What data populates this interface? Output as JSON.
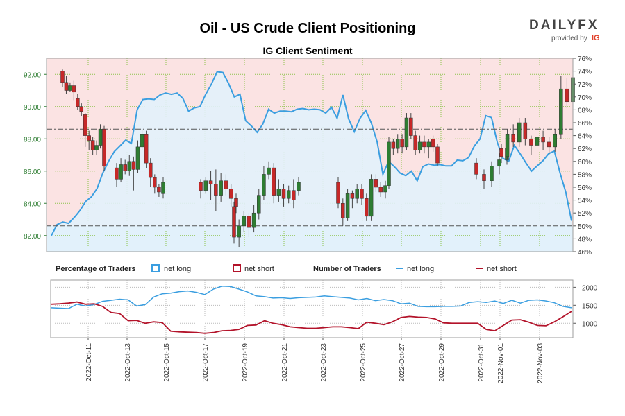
{
  "header": {
    "title": "Oil - US Crude Client Positioning",
    "subtitle": "IG Client Sentiment"
  },
  "logo": {
    "brand": "DAILYFX",
    "provided_by": "provided by",
    "ig": "IG"
  },
  "legend": {
    "percentage_label": "Percentage of Traders",
    "number_label": "Number of Traders",
    "net_long": "net long",
    "net_short": "net short"
  },
  "colors": {
    "long": "#3a9ee0",
    "short": "#b3132a",
    "candle_up": "#2e7d32",
    "candle_down": "#c62828",
    "short_bg": "#fbe3e3",
    "long_bg": "#e2f1fb",
    "grid": "#8bc34a"
  },
  "chart_data": [
    {
      "type": "candlestick",
      "title": "Oil - US Crude Client Positioning",
      "subtitle": "IG Client Sentiment",
      "price_axis": {
        "side": "left",
        "ylim": [
          81,
          93
        ],
        "ticks": [
          "82.00",
          "84.00",
          "86.00",
          "88.00",
          "90.00",
          "92.00"
        ]
      },
      "sentiment_axis": {
        "side": "right",
        "ylim": [
          46,
          76
        ],
        "ticks": [
          "46%",
          "48%",
          "50%",
          "52%",
          "54%",
          "56%",
          "58%",
          "60%",
          "62%",
          "64%",
          "66%",
          "68%",
          "70%",
          "72%",
          "74%",
          "76%"
        ]
      },
      "x_ticks": [
        "2022-Oct-11",
        "2022-Oct-13",
        "2022-Oct-15",
        "2022-Oct-17",
        "2022-Oct-19",
        "2022-Oct-21",
        "2022-Oct-23",
        "2022-Oct-25",
        "2022-Oct-27",
        "2022-Oct-29",
        "2022-Oct-31",
        "2022-Nov-01",
        "2022-Nov-03"
      ],
      "reference_lines": [
        50,
        65
      ],
      "grid": true,
      "candles": [
        [
          92.2,
          91.5,
          92.3,
          91.2
        ],
        [
          91.5,
          91.0,
          91.9,
          90.8
        ],
        [
          91.0,
          91.3,
          91.5,
          90.9
        ],
        [
          91.3,
          90.9,
          91.6,
          90.4
        ],
        [
          90.5,
          90.0,
          90.8,
          89.8
        ],
        [
          90.0,
          89.7,
          90.2,
          89.4
        ],
        [
          89.5,
          88.2,
          89.6,
          87.5
        ],
        [
          88.2,
          87.9,
          88.5,
          87.3
        ],
        [
          87.9,
          87.3,
          88.1,
          87.0
        ],
        [
          87.3,
          87.6,
          87.9,
          87.0
        ],
        [
          87.6,
          88.6,
          88.9,
          87.4
        ],
        [
          88.6,
          86.3,
          88.8,
          86.0
        ],
        [
          86.2,
          85.5,
          86.5,
          85.0
        ],
        [
          85.5,
          86.4,
          86.8,
          85.3
        ],
        [
          86.4,
          86.0,
          86.7,
          85.8
        ],
        [
          86.0,
          86.6,
          87.0,
          85.7
        ],
        [
          86.6,
          86.1,
          86.9,
          84.8
        ],
        [
          86.1,
          87.5,
          87.9,
          85.9
        ],
        [
          87.5,
          88.3,
          88.6,
          87.3
        ],
        [
          88.3,
          86.5,
          88.5,
          86.2
        ],
        [
          86.5,
          85.6,
          86.8,
          85.0
        ],
        [
          85.6,
          85.0,
          85.8,
          84.6
        ],
        [
          85.0,
          84.7,
          85.2,
          84.4
        ],
        [
          84.6,
          85.3,
          85.6,
          84.3
        ],
        [
          85.3,
          84.8,
          85.5,
          84.3
        ],
        [
          84.8,
          85.4,
          85.6,
          84.6
        ],
        [
          85.4,
          85.2,
          86.0,
          84.2
        ],
        [
          85.2,
          84.5,
          86.1,
          83.5
        ],
        [
          84.5,
          85.4,
          85.9,
          84.1
        ],
        [
          85.4,
          84.9,
          85.8,
          84.5
        ],
        [
          84.9,
          84.3,
          85.2,
          83.8
        ],
        [
          84.3,
          83.8,
          84.6,
          83.4
        ],
        [
          83.8,
          81.9,
          84.1,
          81.5
        ],
        [
          81.9,
          82.6,
          83.0,
          81.3
        ],
        [
          82.6,
          83.2,
          83.5,
          82.2
        ],
        [
          83.2,
          82.5,
          83.4,
          81.9
        ],
        [
          82.5,
          83.4,
          83.9,
          82.2
        ],
        [
          83.4,
          84.5,
          84.9,
          83.0
        ],
        [
          84.5,
          85.8,
          86.3,
          84.2
        ],
        [
          85.8,
          86.2,
          86.6,
          85.5
        ],
        [
          86.2,
          84.5,
          86.5,
          84.0
        ],
        [
          84.5,
          84.9,
          85.5,
          84.1
        ],
        [
          84.9,
          84.3,
          85.2,
          83.8
        ],
        [
          84.3,
          84.8,
          85.1,
          84.0
        ],
        [
          84.8,
          84.2,
          85.5,
          83.7
        ],
        [
          84.8,
          85.3,
          85.6,
          84.5
        ],
        [
          85.3,
          84.0,
          85.6,
          83.7
        ],
        [
          84.0,
          83.1,
          84.3,
          82.6
        ],
        [
          83.1,
          84.6,
          84.9,
          82.9
        ],
        [
          84.6,
          84.3,
          84.8,
          83.7
        ],
        [
          84.3,
          84.9,
          85.2,
          84.0
        ],
        [
          84.9,
          84.3,
          85.2,
          83.9
        ],
        [
          84.3,
          83.2,
          84.6,
          82.9
        ],
        [
          83.2,
          85.5,
          85.8,
          82.9
        ],
        [
          85.5,
          85.0,
          85.8,
          84.7
        ],
        [
          85.0,
          84.7,
          85.3,
          84.4
        ],
        [
          84.7,
          85.1,
          85.4,
          84.3
        ],
        [
          85.1,
          87.8,
          88.1,
          84.9
        ],
        [
          87.8,
          87.4,
          88.0,
          87.0
        ],
        [
          87.4,
          88.0,
          88.3,
          87.1
        ],
        [
          88.0,
          87.5,
          88.3,
          87.1
        ],
        [
          87.5,
          89.3,
          89.6,
          87.3
        ],
        [
          89.3,
          88.2,
          89.6,
          88.0
        ],
        [
          88.2,
          87.3,
          88.5,
          87.0
        ],
        [
          87.3,
          87.8,
          88.2,
          87.1
        ],
        [
          87.8,
          87.5,
          88.2,
          87.1
        ],
        [
          87.5,
          87.8,
          88.0,
          86.8
        ],
        [
          88.0,
          87.5,
          88.2,
          87.2
        ],
        [
          87.5,
          86.5,
          87.7,
          86.3
        ],
        [
          86.5,
          85.8,
          86.8,
          85.5
        ],
        [
          85.8,
          85.4,
          86.1,
          84.9
        ],
        [
          85.4,
          86.3,
          86.6,
          85.0
        ],
        [
          86.3,
          86.7,
          87.1,
          85.8
        ],
        [
          86.7,
          87.4,
          87.8,
          86.4
        ],
        [
          87.4,
          86.9,
          87.7,
          86.5
        ],
        [
          86.9,
          88.3,
          88.6,
          86.7
        ],
        [
          88.3,
          87.8,
          88.9,
          87.5
        ],
        [
          87.8,
          89.0,
          89.3,
          87.5
        ],
        [
          89.0,
          88.0,
          89.3,
          87.6
        ],
        [
          88.0,
          87.6,
          88.2,
          87.0
        ],
        [
          87.6,
          88.1,
          88.4,
          87.3
        ],
        [
          88.1,
          87.8,
          88.5,
          87.3
        ],
        [
          87.8,
          87.5,
          88.1,
          87.0
        ],
        [
          87.5,
          88.3,
          88.6,
          87.2
        ],
        [
          88.3,
          91.1,
          91.9,
          88.0
        ],
        [
          91.1,
          90.3,
          91.8,
          89.9
        ],
        [
          90.3,
          91.8,
          92.2,
          90.0
        ]
      ],
      "sentiment_net_long_pct": [
        48.5,
        50.2,
        50.6,
        50.4,
        51.3,
        52.4,
        53.8,
        54.5,
        55.8,
        58.2,
        60.0,
        61.5,
        62.4,
        63.3,
        62.8,
        68.0,
        69.6,
        69.7,
        69.6,
        70.3,
        70.6,
        70.4,
        70.6,
        69.8,
        67.8,
        68.3,
        68.5,
        70.4,
        72.0,
        73.9,
        73.8,
        72.1,
        70.0,
        70.4,
        66.3,
        65.5,
        64.5,
        65.8,
        68.1,
        67.5,
        67.8,
        67.8,
        67.7,
        68.1,
        68.2,
        68.0,
        68.1,
        68.0,
        67.5,
        68.4,
        66.7,
        70.3,
        66.6,
        64.6,
        66.7,
        67.9,
        65.9,
        63.0,
        58.0,
        60.0,
        59.2,
        58.2,
        57.8,
        58.5,
        57.0,
        59.2,
        59.6,
        59.4,
        59.5,
        59.3,
        59.3,
        60.2,
        60.1,
        60.6,
        62.4,
        63.5,
        67.1,
        66.8,
        63.0,
        60.5,
        60.0,
        62.5,
        61.2,
        59.8,
        58.5,
        59.3,
        60.1,
        61.2,
        61.6,
        58.2,
        55.2,
        50.8
      ],
      "traders_net_long": [
        1430,
        1420,
        1410,
        1530,
        1480,
        1520,
        1610,
        1640,
        1670,
        1650,
        1480,
        1520,
        1730,
        1820,
        1840,
        1880,
        1900,
        1860,
        1800,
        1950,
        2030,
        2020,
        1950,
        1870,
        1760,
        1740,
        1700,
        1710,
        1690,
        1710,
        1720,
        1730,
        1760,
        1740,
        1720,
        1700,
        1650,
        1690,
        1630,
        1660,
        1630,
        1540,
        1560,
        1470,
        1460,
        1460,
        1470,
        1470,
        1480,
        1580,
        1600,
        1580,
        1620,
        1550,
        1640,
        1560,
        1640,
        1650,
        1620,
        1570,
        1470,
        1430
      ],
      "traders_net_short": [
        1530,
        1540,
        1560,
        1590,
        1530,
        1540,
        1470,
        1300,
        1270,
        1070,
        1080,
        1000,
        1040,
        1020,
        780,
        760,
        750,
        740,
        720,
        740,
        790,
        800,
        830,
        940,
        950,
        1070,
        1000,
        960,
        900,
        880,
        860,
        860,
        880,
        900,
        900,
        880,
        850,
        1030,
        1000,
        960,
        1040,
        1160,
        1190,
        1170,
        1160,
        1120,
        1010,
        1000,
        1000,
        1000,
        1000,
        830,
        790,
        940,
        1090,
        1100,
        1030,
        940,
        930,
        1040,
        1180,
        1330
      ]
    }
  ]
}
